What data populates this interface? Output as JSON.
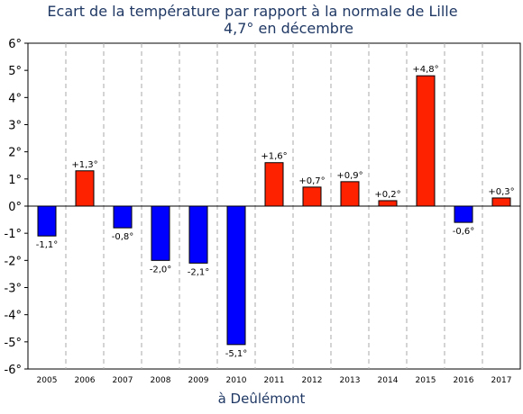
{
  "chart_data": {
    "type": "bar",
    "title": "Ecart de la température par rapport à la normale de Lille",
    "subtitle": "4,7° en décembre",
    "xlabel": "à Deûlémont",
    "ylabel": "",
    "ylim": [
      -6,
      6
    ],
    "yticks": [
      "-6°",
      "-5°",
      "-4°",
      "-3°",
      "-2°",
      "-1°",
      "0°",
      "1°",
      "2°",
      "3°",
      "4°",
      "5°",
      "6°"
    ],
    "grid": "vertical dashed",
    "categories": [
      "2005",
      "2006",
      "2007",
      "2008",
      "2009",
      "2010",
      "2011",
      "2012",
      "2013",
      "2014",
      "2015",
      "2016",
      "2017"
    ],
    "values": [
      -1.1,
      1.3,
      -0.8,
      -2.0,
      -2.1,
      -5.1,
      1.6,
      0.7,
      0.9,
      0.2,
      4.8,
      -0.6,
      0.3
    ],
    "labels": [
      "-1,1°",
      "+1,3°",
      "-0,8°",
      "-2,0°",
      "-2,1°",
      "-5,1°",
      "+1,6°",
      "+0,7°",
      "+0,9°",
      "+0,2°",
      "+4,8°",
      "-0,6°",
      "+0,3°"
    ],
    "colors": {
      "positive": "#ff2200",
      "negative": "#0000ff"
    }
  }
}
